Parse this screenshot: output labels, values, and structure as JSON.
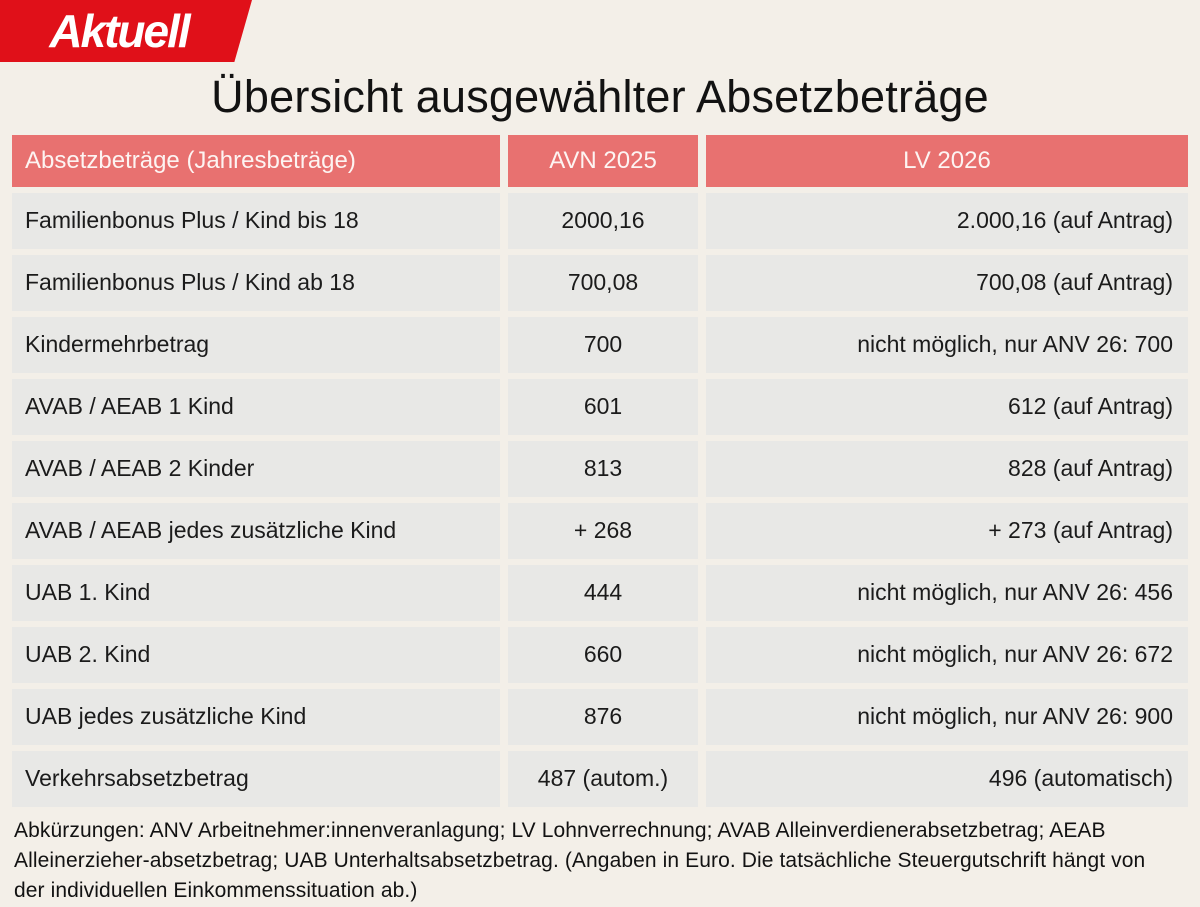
{
  "logo": {
    "text": "Aktuell"
  },
  "title": "Übersicht ausgewählter Absetzbeträge",
  "table": {
    "headers": [
      "Absetzbeträge (Jahresbeträge)",
      "AVN 2025",
      "LV 2026"
    ],
    "rows": [
      {
        "label": "Familienbonus Plus / Kind bis 18",
        "avn": "2000,16",
        "lv": "2.000,16 (auf Antrag)"
      },
      {
        "label": "Familienbonus Plus / Kind ab 18",
        "avn": "700,08",
        "lv": "700,08 (auf Antrag)"
      },
      {
        "label": "Kindermehrbetrag",
        "avn": "700",
        "lv": "nicht möglich, nur ANV 26: 700"
      },
      {
        "label": "AVAB / AEAB 1 Kind",
        "avn": "601",
        "lv": "612 (auf Antrag)"
      },
      {
        "label": "AVAB / AEAB 2 Kinder",
        "avn": "813",
        "lv": "828 (auf Antrag)"
      },
      {
        "label": "AVAB / AEAB jedes zusätzliche Kind",
        "avn": "+ 268",
        "lv": "+ 273 (auf Antrag)"
      },
      {
        "label": "UAB 1. Kind",
        "avn": "444",
        "lv": "nicht möglich, nur ANV 26: 456"
      },
      {
        "label": "UAB 2. Kind",
        "avn": "660",
        "lv": "nicht möglich, nur ANV 26: 672"
      },
      {
        "label": "UAB jedes zusätzliche Kind",
        "avn": "876",
        "lv": "nicht möglich, nur ANV 26: 900"
      },
      {
        "label": "Verkehrsabsetzbetrag",
        "avn": "487 (autom.)",
        "lv": "496 (automatisch)"
      }
    ]
  },
  "footer": {
    "text": "Abkürzungen: ANV Arbeitnehmer:innenveranlagung; LV Lohnverrechnung; AVAB Alleinverdienerabsetzbetrag; AEAB Alleinerzieher-absetzbetrag; UAB Unterhaltsabsetzbetrag. (Angaben in Euro. Die tatsächliche Steuergutschrift hängt von der individuellen Einkommenssituation ab.)"
  },
  "colors": {
    "page-bg": "#f3efe8",
    "logo-red": "#e01019",
    "header-red": "#e87170",
    "cell-bg": "#e8e8e6"
  },
  "chart_data": {
    "type": "table",
    "title": "Übersicht ausgewählter Absetzbeträge",
    "columns": [
      "Absetzbeträge (Jahresbeträge)",
      "AVN 2025",
      "LV 2026"
    ],
    "rows": [
      [
        "Familienbonus Plus / Kind bis 18",
        "2000,16",
        "2.000,16 (auf Antrag)"
      ],
      [
        "Familienbonus Plus / Kind ab 18",
        "700,08",
        "700,08 (auf Antrag)"
      ],
      [
        "Kindermehrbetrag",
        "700",
        "nicht möglich, nur ANV 26: 700"
      ],
      [
        "AVAB / AEAB 1 Kind",
        "601",
        "612 (auf Antrag)"
      ],
      [
        "AVAB / AEAB 2 Kinder",
        "813",
        "828 (auf Antrag)"
      ],
      [
        "AVAB / AEAB jedes zusätzliche Kind",
        "+ 268",
        "+ 273 (auf Antrag)"
      ],
      [
        "UAB 1. Kind",
        "444",
        "nicht möglich, nur ANV 26: 456"
      ],
      [
        "UAB 2. Kind",
        "660",
        "nicht möglich, nur ANV 26: 672"
      ],
      [
        "UAB jedes zusätzliche Kind",
        "876",
        "nicht möglich, nur ANV 26: 900"
      ],
      [
        "Verkehrsabsetzbetrag",
        "487 (autom.)",
        "496 (automatisch)"
      ]
    ],
    "notes": "Abkürzungen: ANV Arbeitnehmer:innenveranlagung; LV Lohnverrechnung; AVAB Alleinverdienerabsetzbetrag; AEAB Alleinerzieher-absetzbetrag; UAB Unterhaltsabsetzbetrag. (Angaben in Euro. Die tatsächliche Steuergutschrift hängt von der individuellen Einkommenssituation ab.)"
  }
}
